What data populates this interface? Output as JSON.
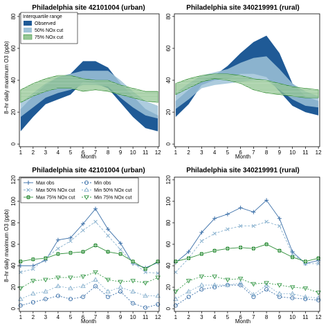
{
  "colors": {
    "observed": "#1f5a96",
    "cut50": "#9fc3d8",
    "cut75_fill": "#d9eed9",
    "cut75_hatch": "#2e8b2e",
    "max_obs": "#3a6fa8",
    "max50": "#8ab2cf",
    "max75": "#2f8f3a",
    "min75": "#3a9a4a"
  },
  "chart_data": [
    {
      "type": "area",
      "title": "Philadelphia site 42101004 (urban)",
      "xlabel": "Month",
      "ylabel": "8–hr daily maximum O3 (ppb)",
      "x": [
        1,
        2,
        3,
        4,
        5,
        6,
        7,
        8,
        9,
        10,
        11,
        12
      ],
      "ylim": [
        0,
        80
      ],
      "yticks": [
        0,
        20,
        40,
        60,
        80
      ],
      "legend": {
        "title": "Interquartile range",
        "position": "top-left",
        "entries": [
          "Observed",
          "50% NOx cut",
          "75% NOx cut"
        ]
      },
      "series": [
        {
          "name": "Observed",
          "low": [
            8,
            17,
            25,
            28,
            31,
            39,
            38,
            35,
            26,
            17,
            10,
            8
          ],
          "high": [
            22,
            30,
            37,
            42,
            44,
            52,
            52,
            48,
            38,
            30,
            22,
            18
          ]
        },
        {
          "name": "50% NOx cut",
          "low": [
            17,
            23,
            29,
            32,
            34,
            37,
            37,
            36,
            29,
            23,
            18,
            16
          ],
          "high": [
            26,
            32,
            38,
            42,
            44,
            46,
            46,
            46,
            40,
            33,
            27,
            24
          ]
        },
        {
          "name": "75% NOx cut",
          "low": [
            26,
            30,
            33,
            35,
            35,
            33,
            34,
            33,
            31,
            29,
            27,
            26
          ],
          "high": [
            34,
            38,
            41,
            43,
            43,
            41,
            40,
            40,
            37,
            35,
            33,
            33
          ]
        }
      ]
    },
    {
      "type": "area",
      "title": "Philadelphia site 340219991 (rural)",
      "xlabel": "Month",
      "ylabel": "",
      "x": [
        1,
        2,
        3,
        4,
        5,
        6,
        7,
        8,
        9,
        10,
        11,
        12
      ],
      "ylim": [
        0,
        80
      ],
      "yticks": [
        0,
        20,
        40,
        60,
        80
      ],
      "series": [
        {
          "name": "Observed",
          "low": [
            17,
            25,
            37,
            40,
            41,
            44,
            44,
            42,
            33,
            24,
            20,
            18
          ],
          "high": [
            27,
            34,
            40,
            43,
            49,
            57,
            64,
            68,
            57,
            38,
            30,
            27
          ]
        },
        {
          "name": "50% NOx cut",
          "low": [
            22,
            28,
            35,
            37,
            38,
            39,
            40,
            40,
            34,
            28,
            24,
            23
          ],
          "high": [
            32,
            38,
            43,
            45,
            47,
            51,
            54,
            55,
            47,
            38,
            33,
            30
          ]
        },
        {
          "name": "75% NOx cut",
          "low": [
            31,
            35,
            39,
            41,
            40,
            38,
            34,
            32,
            31,
            30,
            29,
            29
          ],
          "high": [
            38,
            41,
            43,
            44,
            44,
            43,
            41,
            40,
            38,
            36,
            35,
            34
          ]
        }
      ]
    },
    {
      "type": "line",
      "title": "Philadelphia site 42101004 (urban)",
      "xlabel": "Month",
      "ylabel": "8–hr daily maximum O3 (ppb)",
      "x": [
        1,
        2,
        3,
        4,
        5,
        6,
        7,
        8,
        9,
        10,
        11,
        12
      ],
      "ylim": [
        0,
        120
      ],
      "yticks": [
        0,
        20,
        40,
        60,
        80,
        100,
        120
      ],
      "legend": {
        "position": "top-left",
        "columns": 2
      },
      "series": [
        {
          "name": "Max obs",
          "values": [
            40,
            40,
            45,
            64,
            66,
            79,
            93,
            74,
            61,
            42,
            38,
            43
          ]
        },
        {
          "name": "Max 50% NOx cut",
          "values": [
            34,
            37,
            47,
            56,
            63,
            73,
            81,
            68,
            55,
            43,
            34,
            33
          ]
        },
        {
          "name": "Max 75% NOx cut",
          "values": [
            44,
            46,
            47,
            51,
            52,
            53,
            59,
            53,
            51,
            44,
            37,
            44
          ]
        },
        {
          "name": "Min obs",
          "values": [
            3,
            6,
            9,
            12,
            9,
            11,
            21,
            11,
            16,
            5,
            1,
            4
          ]
        },
        {
          "name": "Min 50% NOx cut",
          "values": [
            9,
            14,
            16,
            21,
            19,
            21,
            27,
            16,
            20,
            16,
            12,
            12
          ]
        },
        {
          "name": "Min 75% NOx cut",
          "values": [
            19,
            26,
            27,
            29,
            29,
            30,
            34,
            27,
            25,
            26,
            24,
            29
          ]
        }
      ]
    },
    {
      "type": "line",
      "title": "Philadelphia site 340219991 (rural)",
      "xlabel": "Month",
      "ylabel": "",
      "x": [
        1,
        2,
        3,
        4,
        5,
        6,
        7,
        8,
        9,
        10,
        11,
        12
      ],
      "ylim": [
        0,
        120
      ],
      "yticks": [
        0,
        20,
        40,
        60,
        80,
        100,
        120
      ],
      "series": [
        {
          "name": "Max obs",
          "values": [
            43,
            53,
            71,
            84,
            88,
            94,
            90,
            101,
            84,
            53,
            42,
            45
          ]
        },
        {
          "name": "Max 50% NOx cut",
          "values": [
            34,
            47,
            63,
            70,
            74,
            77,
            77,
            81,
            77,
            51,
            42,
            42
          ]
        },
        {
          "name": "Max 75% NOx cut",
          "values": [
            44,
            47,
            51,
            54,
            56,
            57,
            56,
            60,
            54,
            48,
            44,
            47
          ]
        },
        {
          "name": "Min obs",
          "values": [
            3,
            11,
            18,
            20,
            22,
            22,
            11,
            18,
            11,
            10,
            9,
            8
          ]
        },
        {
          "name": "Min 50% NOx cut",
          "values": [
            9,
            16,
            22,
            22,
            22,
            24,
            13,
            22,
            14,
            14,
            11,
            10
          ]
        },
        {
          "name": "Min 75% NOx cut",
          "values": [
            16,
            26,
            30,
            30,
            27,
            28,
            23,
            24,
            22,
            20,
            19,
            15
          ]
        }
      ]
    }
  ]
}
